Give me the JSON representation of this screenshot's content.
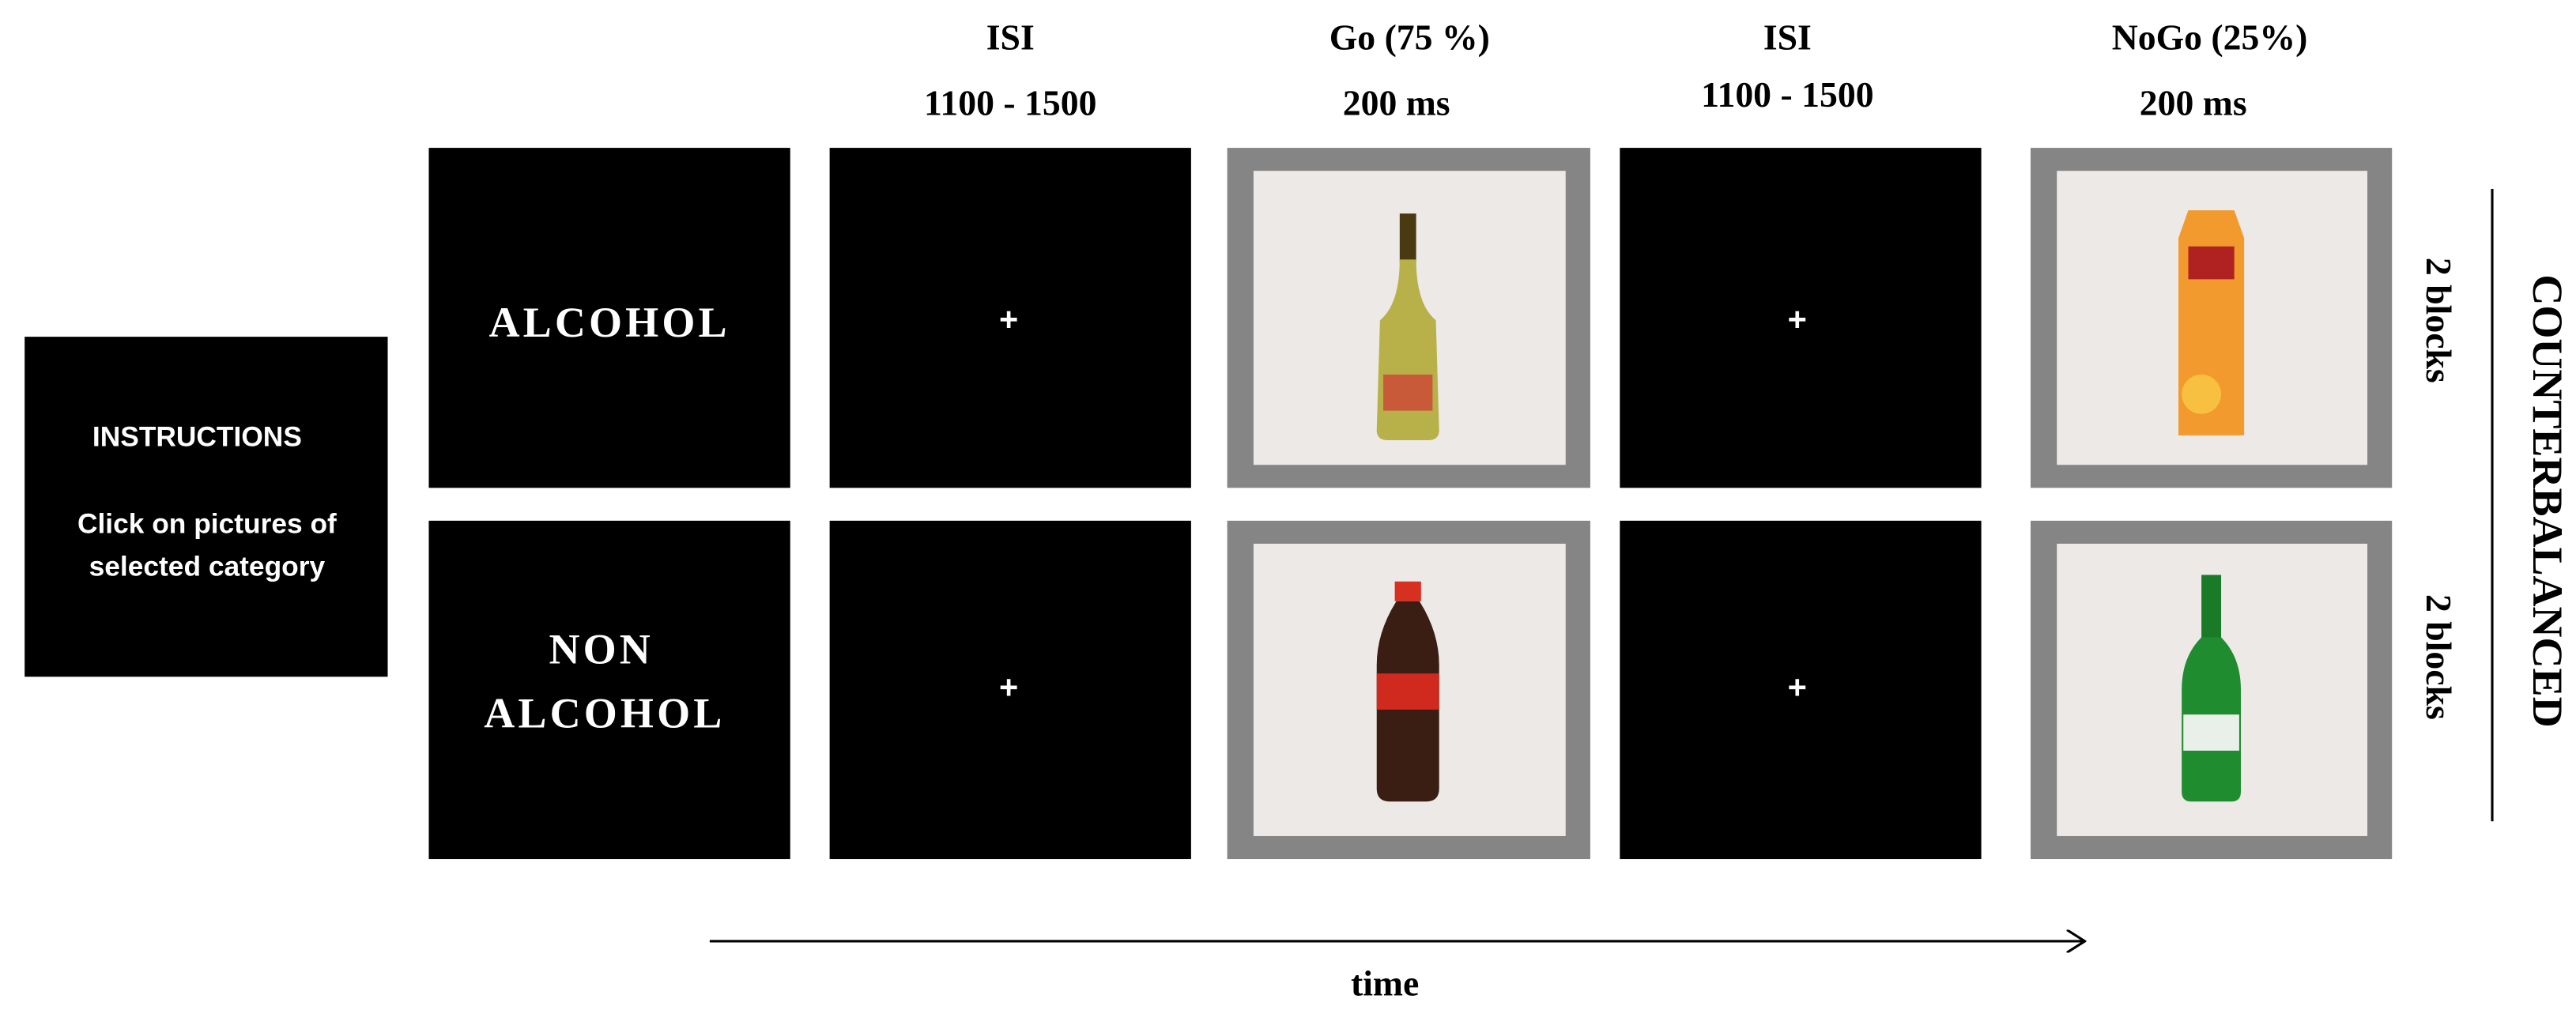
{
  "instructions": {
    "title": "INSTRUCTIONS",
    "text": [
      "Click on pictures of",
      "selected category"
    ]
  },
  "columns": [
    {
      "label": "ISI",
      "duration": "1100 - 1500"
    },
    {
      "label": "Go (75 %)",
      "duration": "200 ms"
    },
    {
      "label": "ISI",
      "duration": "1100 - 1500"
    },
    {
      "label": "NoGo (25%)",
      "duration": "200 ms"
    }
  ],
  "rows": [
    {
      "category": [
        "ALCOHOL"
      ],
      "blocks": "2 blocks"
    },
    {
      "category": [
        "NON",
        "ALCOHOL"
      ],
      "blocks": "2 blocks"
    }
  ],
  "fixation": "+",
  "counterbalanced": "COUNTERBALANCED",
  "axis": {
    "label": "time"
  }
}
